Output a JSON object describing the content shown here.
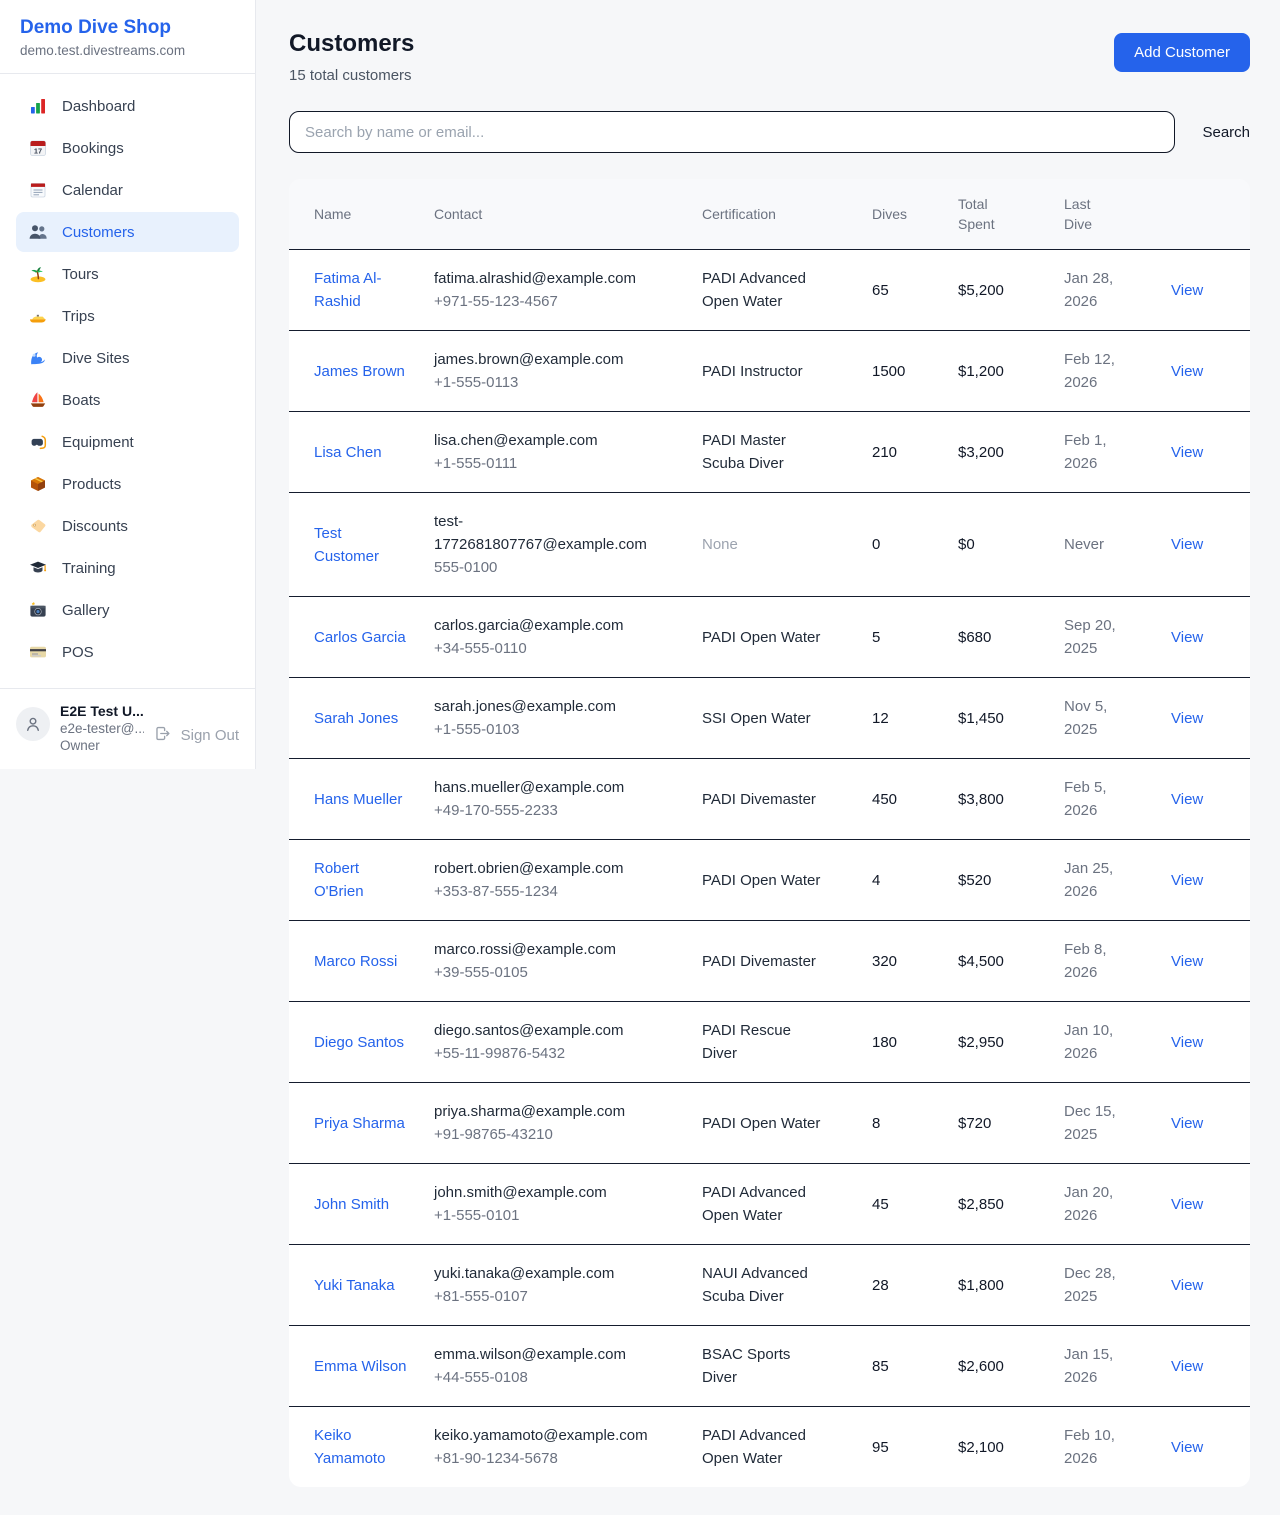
{
  "colors": {
    "accent": "#2563eb",
    "active_item_bg": "#e8f1fd",
    "border_dark": "#151d2e"
  },
  "sidebar": {
    "brand": {
      "title": "Demo Dive Shop",
      "domain": "demo.test.divestreams.com"
    },
    "items": [
      {
        "icon": "bar-chart",
        "label": "Dashboard",
        "active": false
      },
      {
        "icon": "calendar-date",
        "label": "Bookings",
        "active": false
      },
      {
        "icon": "spiral-calendar",
        "label": "Calendar",
        "active": false
      },
      {
        "icon": "people",
        "label": "Customers",
        "active": true
      },
      {
        "icon": "island",
        "label": "Tours",
        "active": false
      },
      {
        "icon": "motorboat",
        "label": "Trips",
        "active": false
      },
      {
        "icon": "wave",
        "label": "Dive Sites",
        "active": false
      },
      {
        "icon": "sailboat",
        "label": "Boats",
        "active": false
      },
      {
        "icon": "diving-mask",
        "label": "Equipment",
        "active": false
      },
      {
        "icon": "package",
        "label": "Products",
        "active": false
      },
      {
        "icon": "label-tag",
        "label": "Discounts",
        "active": false
      },
      {
        "icon": "graduation-cap",
        "label": "Training",
        "active": false
      },
      {
        "icon": "camera",
        "label": "Gallery",
        "active": false
      },
      {
        "icon": "credit-card",
        "label": "POS",
        "active": false
      }
    ],
    "user": {
      "name": "E2E Test U...",
      "email": "e2e-tester@...",
      "role": "Owner",
      "sign_out_label": "Sign Out"
    }
  },
  "header": {
    "title": "Customers",
    "subtitle": "15 total customers",
    "add_button": "Add Customer"
  },
  "search": {
    "placeholder": "Search by name or email...",
    "button": "Search"
  },
  "table": {
    "columns": [
      "Name",
      "Contact",
      "Certification",
      "Dives",
      "Total Spent",
      "Last Dive",
      ""
    ],
    "action_label": "View",
    "rows": [
      {
        "name": "Fatima Al-Rashid",
        "email": "fatima.alrashid@example.com",
        "phone": "+971-55-123-4567",
        "certification": "PADI Advanced Open Water",
        "dives": "65",
        "total_spent": "$5,200",
        "last_dive": "Jan 28, 2026"
      },
      {
        "name": "James Brown",
        "email": "james.brown@example.com",
        "phone": "+1-555-0113",
        "certification": "PADI Instructor",
        "dives": "1500",
        "total_spent": "$1,200",
        "last_dive": "Feb 12, 2026"
      },
      {
        "name": "Lisa Chen",
        "email": "lisa.chen@example.com",
        "phone": "+1-555-0111",
        "certification": "PADI Master Scuba Diver",
        "dives": "210",
        "total_spent": "$3,200",
        "last_dive": "Feb 1, 2026"
      },
      {
        "name": "Test Customer",
        "email": "test-1772681807767@example.com",
        "phone": "555-0100",
        "certification": "None",
        "dives": "0",
        "total_spent": "$0",
        "last_dive": "Never"
      },
      {
        "name": "Carlos Garcia",
        "email": "carlos.garcia@example.com",
        "phone": "+34-555-0110",
        "certification": "PADI Open Water",
        "dives": "5",
        "total_spent": "$680",
        "last_dive": "Sep 20, 2025"
      },
      {
        "name": "Sarah Jones",
        "email": "sarah.jones@example.com",
        "phone": "+1-555-0103",
        "certification": "SSI Open Water",
        "dives": "12",
        "total_spent": "$1,450",
        "last_dive": "Nov 5, 2025"
      },
      {
        "name": "Hans Mueller",
        "email": "hans.mueller@example.com",
        "phone": "+49-170-555-2233",
        "certification": "PADI Divemaster",
        "dives": "450",
        "total_spent": "$3,800",
        "last_dive": "Feb 5, 2026"
      },
      {
        "name": "Robert O'Brien",
        "email": "robert.obrien@example.com",
        "phone": "+353-87-555-1234",
        "certification": "PADI Open Water",
        "dives": "4",
        "total_spent": "$520",
        "last_dive": "Jan 25, 2026"
      },
      {
        "name": "Marco Rossi",
        "email": "marco.rossi@example.com",
        "phone": "+39-555-0105",
        "certification": "PADI Divemaster",
        "dives": "320",
        "total_spent": "$4,500",
        "last_dive": "Feb 8, 2026"
      },
      {
        "name": "Diego Santos",
        "email": "diego.santos@example.com",
        "phone": "+55-11-99876-5432",
        "certification": "PADI Rescue Diver",
        "dives": "180",
        "total_spent": "$2,950",
        "last_dive": "Jan 10, 2026"
      },
      {
        "name": "Priya Sharma",
        "email": "priya.sharma@example.com",
        "phone": "+91-98765-43210",
        "certification": "PADI Open Water",
        "dives": "8",
        "total_spent": "$720",
        "last_dive": "Dec 15, 2025"
      },
      {
        "name": "John Smith",
        "email": "john.smith@example.com",
        "phone": "+1-555-0101",
        "certification": "PADI Advanced Open Water",
        "dives": "45",
        "total_spent": "$2,850",
        "last_dive": "Jan 20, 2026"
      },
      {
        "name": "Yuki Tanaka",
        "email": "yuki.tanaka@example.com",
        "phone": "+81-555-0107",
        "certification": "NAUI Advanced Scuba Diver",
        "dives": "28",
        "total_spent": "$1,800",
        "last_dive": "Dec 28, 2025"
      },
      {
        "name": "Emma Wilson",
        "email": "emma.wilson@example.com",
        "phone": "+44-555-0108",
        "certification": "BSAC Sports Diver",
        "dives": "85",
        "total_spent": "$2,600",
        "last_dive": "Jan 15, 2026"
      },
      {
        "name": "Keiko Yamamoto",
        "email": "keiko.yamamoto@example.com",
        "phone": "+81-90-1234-5678",
        "certification": "PADI Advanced Open Water",
        "dives": "95",
        "total_spent": "$2,100",
        "last_dive": "Feb 10, 2026"
      }
    ]
  }
}
